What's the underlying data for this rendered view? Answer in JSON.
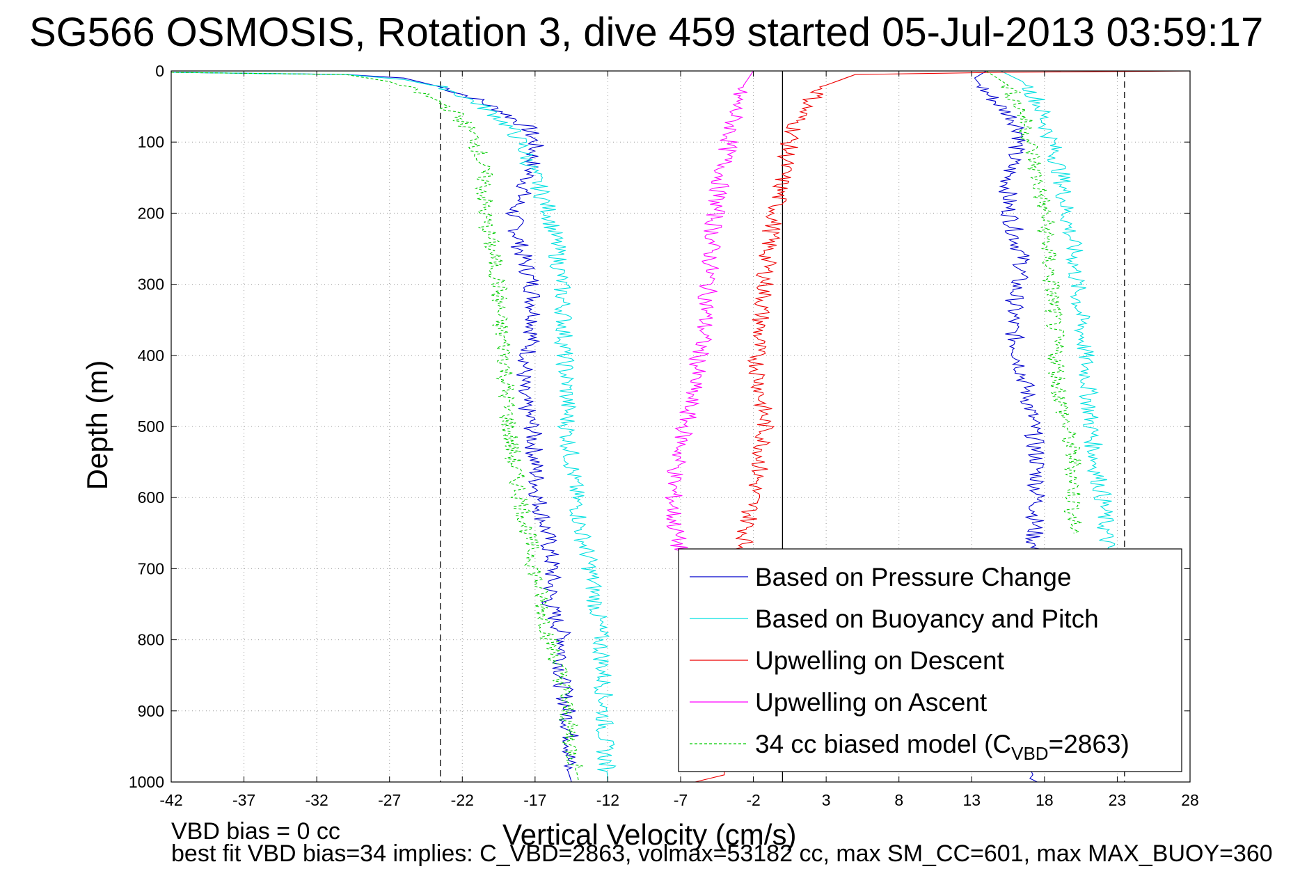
{
  "chart_data": {
    "type": "line",
    "title": "SG566 OSMOSIS, Rotation 3, dive 459 started 05-Jul-2013 03:59:17",
    "xlabel": "Vertical Velocity (cm/s)",
    "ylabel": "Depth (m)",
    "xlim": [
      -42,
      28
    ],
    "ylim": [
      1000,
      0
    ],
    "y_inverted": true,
    "xticks": [
      -42,
      -37,
      -32,
      -27,
      -22,
      -17,
      -12,
      -7,
      -2,
      3,
      8,
      13,
      18,
      23,
      28
    ],
    "yticks": [
      0,
      100,
      200,
      300,
      400,
      500,
      600,
      700,
      800,
      900,
      1000
    ],
    "grid": true,
    "legend_position": "bottom-right",
    "reference_lines": [
      {
        "orientation": "vertical",
        "x": -23.5,
        "style": "dashed",
        "color": "#000000"
      },
      {
        "orientation": "vertical",
        "x": 23.5,
        "style": "dashed",
        "color": "#000000"
      },
      {
        "orientation": "vertical",
        "x": 0,
        "style": "solid",
        "color": "#000000"
      }
    ],
    "series": [
      {
        "name": "Based on Pressure Change",
        "color": "#0000cc",
        "style": "solid",
        "branches": [
          {
            "x": [
              -42,
              -30,
              -26,
              -23,
              -21,
              -19,
              -17.5,
              -17,
              -17.2,
              -17.8,
              -18.5,
              -18,
              -17.2,
              -17,
              -17.5,
              -18,
              -17.2,
              -17,
              -16.8,
              -16.2,
              -15.8,
              -16,
              -15,
              -15.2,
              -14.8,
              -14.5,
              -14.8,
              -14.5
            ],
            "y": [
              2,
              5,
              10,
              25,
              40,
              60,
              80,
              100,
              130,
              170,
              200,
              250,
              300,
              350,
              400,
              450,
              500,
              550,
              600,
              650,
              700,
              750,
              800,
              850,
              900,
              950,
              980,
              1000
            ]
          },
          {
            "x": [
              14,
              13.2,
              14,
              15,
              16,
              16.5,
              16,
              15.5,
              15.5,
              16,
              16.5,
              16,
              15.8,
              16.2,
              16.8,
              17.2,
              17.5,
              17.5,
              17.3,
              17,
              17.3,
              17.5,
              17.2,
              17,
              16.8,
              17,
              17.2,
              17,
              17.5
            ],
            "y": [
              0,
              10,
              30,
              50,
              70,
              90,
              110,
              150,
              190,
              230,
              270,
              310,
              360,
              400,
              450,
              500,
              550,
              600,
              650,
              700,
              750,
              800,
              850,
              900,
              950,
              980,
              990,
              995,
              1000
            ]
          }
        ]
      },
      {
        "name": "Based on Buoyancy and Pitch",
        "color": "#00e0e0",
        "style": "solid",
        "branches": [
          {
            "x": [
              -42,
              -30,
              -26,
              -23,
              -21,
              -19.5,
              -18.5,
              -18,
              -17,
              -16,
              -15.5,
              -15.2,
              -15,
              -15,
              -14.8,
              -14.8,
              -14.5,
              -14.2,
              -13.8,
              -13.2,
              -12.8,
              -12.5,
              -12.3,
              -12.2,
              -12
            ],
            "y": [
              2,
              5,
              12,
              25,
              45,
              65,
              85,
              100,
              150,
              200,
              250,
              300,
              350,
              400,
              450,
              500,
              550,
              600,
              650,
              700,
              750,
              800,
              850,
              950,
              1000
            ]
          },
          {
            "x": [
              15,
              16.5,
              17.5,
              18,
              18.5,
              19.2,
              19.5,
              20,
              20.2,
              20.5,
              20.8,
              21,
              21.2,
              21.5,
              22,
              22.2,
              22.5,
              22.8,
              23
            ],
            "y": [
              0,
              15,
              40,
              70,
              100,
              150,
              200,
              250,
              300,
              350,
              400,
              450,
              500,
              550,
              600,
              650,
              700,
              750,
              800
            ]
          }
        ]
      },
      {
        "name": "Upwelling on Descent",
        "color": "#ee0000",
        "style": "solid",
        "branches": [
          {
            "x": [
              28,
              15,
              5,
              3,
              2,
              1,
              0.5,
              0,
              -0.5,
              -1,
              -1.2,
              -1.5,
              -1.8,
              -1.5,
              -1.2,
              -1.5,
              -2,
              -2.5,
              -3,
              -4,
              -6
            ],
            "y": [
              0,
              2,
              5,
              20,
              40,
              70,
              100,
              150,
              200,
              250,
              300,
              350,
              400,
              450,
              500,
              550,
              600,
              650,
              700,
              990,
              1000
            ]
          }
        ]
      },
      {
        "name": "Upwelling on Ascent",
        "color": "#ff00ff",
        "style": "solid",
        "branches": [
          {
            "x": [
              -2,
              -3,
              -3.5,
              -4,
              -4.5,
              -4.8,
              -5,
              -5.2,
              -5.5,
              -6,
              -6.5,
              -7,
              -7.5,
              -7.5,
              -7
            ],
            "y": [
              0,
              30,
              80,
              130,
              180,
              230,
              280,
              330,
              380,
              430,
              480,
              530,
              580,
              630,
              680
            ]
          }
        ]
      },
      {
        "name": "34 cc biased model (C_VBD=2863)",
        "color": "#00cc00",
        "style": "dashed",
        "branches": [
          {
            "x": [
              -42,
              -30,
              -27,
              -25,
              -23,
              -22,
              -21,
              -20.5,
              -20.5,
              -20,
              -19.5,
              -19.5,
              -19,
              -19,
              -18.8,
              -18.5,
              -18,
              -17.5,
              -17,
              -16.5,
              -16,
              -15.2,
              -14.5,
              -14
            ],
            "y": [
              2,
              5,
              15,
              30,
              50,
              70,
              100,
              150,
              200,
              250,
              300,
              350,
              400,
              450,
              500,
              550,
              600,
              650,
              700,
              750,
              800,
              850,
              950,
              1000
            ]
          },
          {
            "x": [
              14,
              15.5,
              16.5,
              17,
              17.5,
              18,
              18.2,
              18.5,
              18.8,
              19,
              19.5,
              20,
              20
            ],
            "y": [
              0,
              20,
              60,
              100,
              150,
              200,
              250,
              300,
              400,
              450,
              500,
              550,
              650
            ]
          }
        ]
      }
    ],
    "legend": [
      {
        "label": "Based on Pressure Change"
      },
      {
        "label": "Based on Buoyancy and Pitch"
      },
      {
        "label": "Upwelling on Descent"
      },
      {
        "label": "Upwelling on Ascent"
      },
      {
        "label_main": "34 cc biased model (C",
        "label_sub": "VBD",
        "label_tail": "=2863)"
      }
    ]
  },
  "notes": {
    "vbd_bias": "VBD bias = 0 cc",
    "best_fit": "best fit VBD bias=34 implies: C_VBD=2863, volmax=53182 cc, max SM_CC=601, max MAX_BUOY=360"
  }
}
